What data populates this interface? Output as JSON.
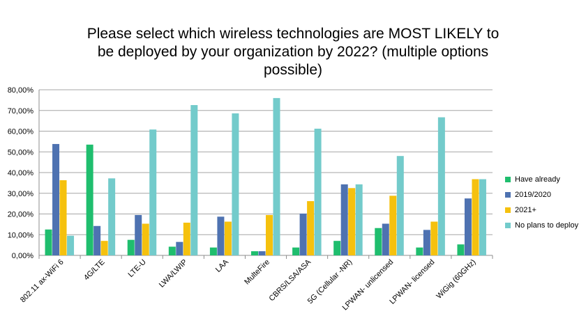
{
  "chart_data": {
    "type": "bar",
    "title_lines": [
      "Please select which wireless technologies are MOST LIKELY to",
      "be deployed by your organization by 2022? (multiple options",
      "possible)"
    ],
    "categories": [
      "802.11 ax-WiFi 6",
      "4G/LTE",
      "LTE-U",
      "LWA/LWIP",
      "LAA",
      "MulteFire",
      "CBRS/LSA/ASA",
      "5G (Cellular -NR)",
      "LPWAN- unlicensed",
      "LPWAN- licensed",
      "WiGig (60GHz)"
    ],
    "series": [
      {
        "name": "Have already",
        "color": "#1fbe6e",
        "values": [
          12.5,
          53.5,
          7.5,
          4.2,
          3.8,
          2.0,
          3.8,
          7.0,
          13.2,
          3.8,
          5.3
        ]
      },
      {
        "name": "2019/2020",
        "color": "#4e72b1",
        "values": [
          53.8,
          14.2,
          19.5,
          6.5,
          18.7,
          2.0,
          20.2,
          34.3,
          15.3,
          12.3,
          27.5
        ]
      },
      {
        "name": "2021+",
        "color": "#f5c10e",
        "values": [
          36.3,
          7.0,
          15.3,
          15.8,
          16.3,
          19.5,
          26.2,
          32.5,
          28.8,
          16.3,
          36.8
        ]
      },
      {
        "name": "No plans to deploy",
        "color": "#73cbcb",
        "values": [
          9.5,
          37.2,
          60.8,
          72.6,
          68.6,
          76.0,
          61.2,
          34.3,
          48.0,
          66.7,
          36.8
        ]
      }
    ],
    "ylim": [
      0,
      80
    ],
    "yticks": [
      0,
      10,
      20,
      30,
      40,
      50,
      60,
      70,
      80
    ],
    "ytick_labels": [
      "0,00%",
      "10,00%",
      "20,00%",
      "30,00%",
      "40,00%",
      "50,00%",
      "60,00%",
      "70,00%",
      "80,00%"
    ],
    "grid": true,
    "legend_position": "right"
  }
}
